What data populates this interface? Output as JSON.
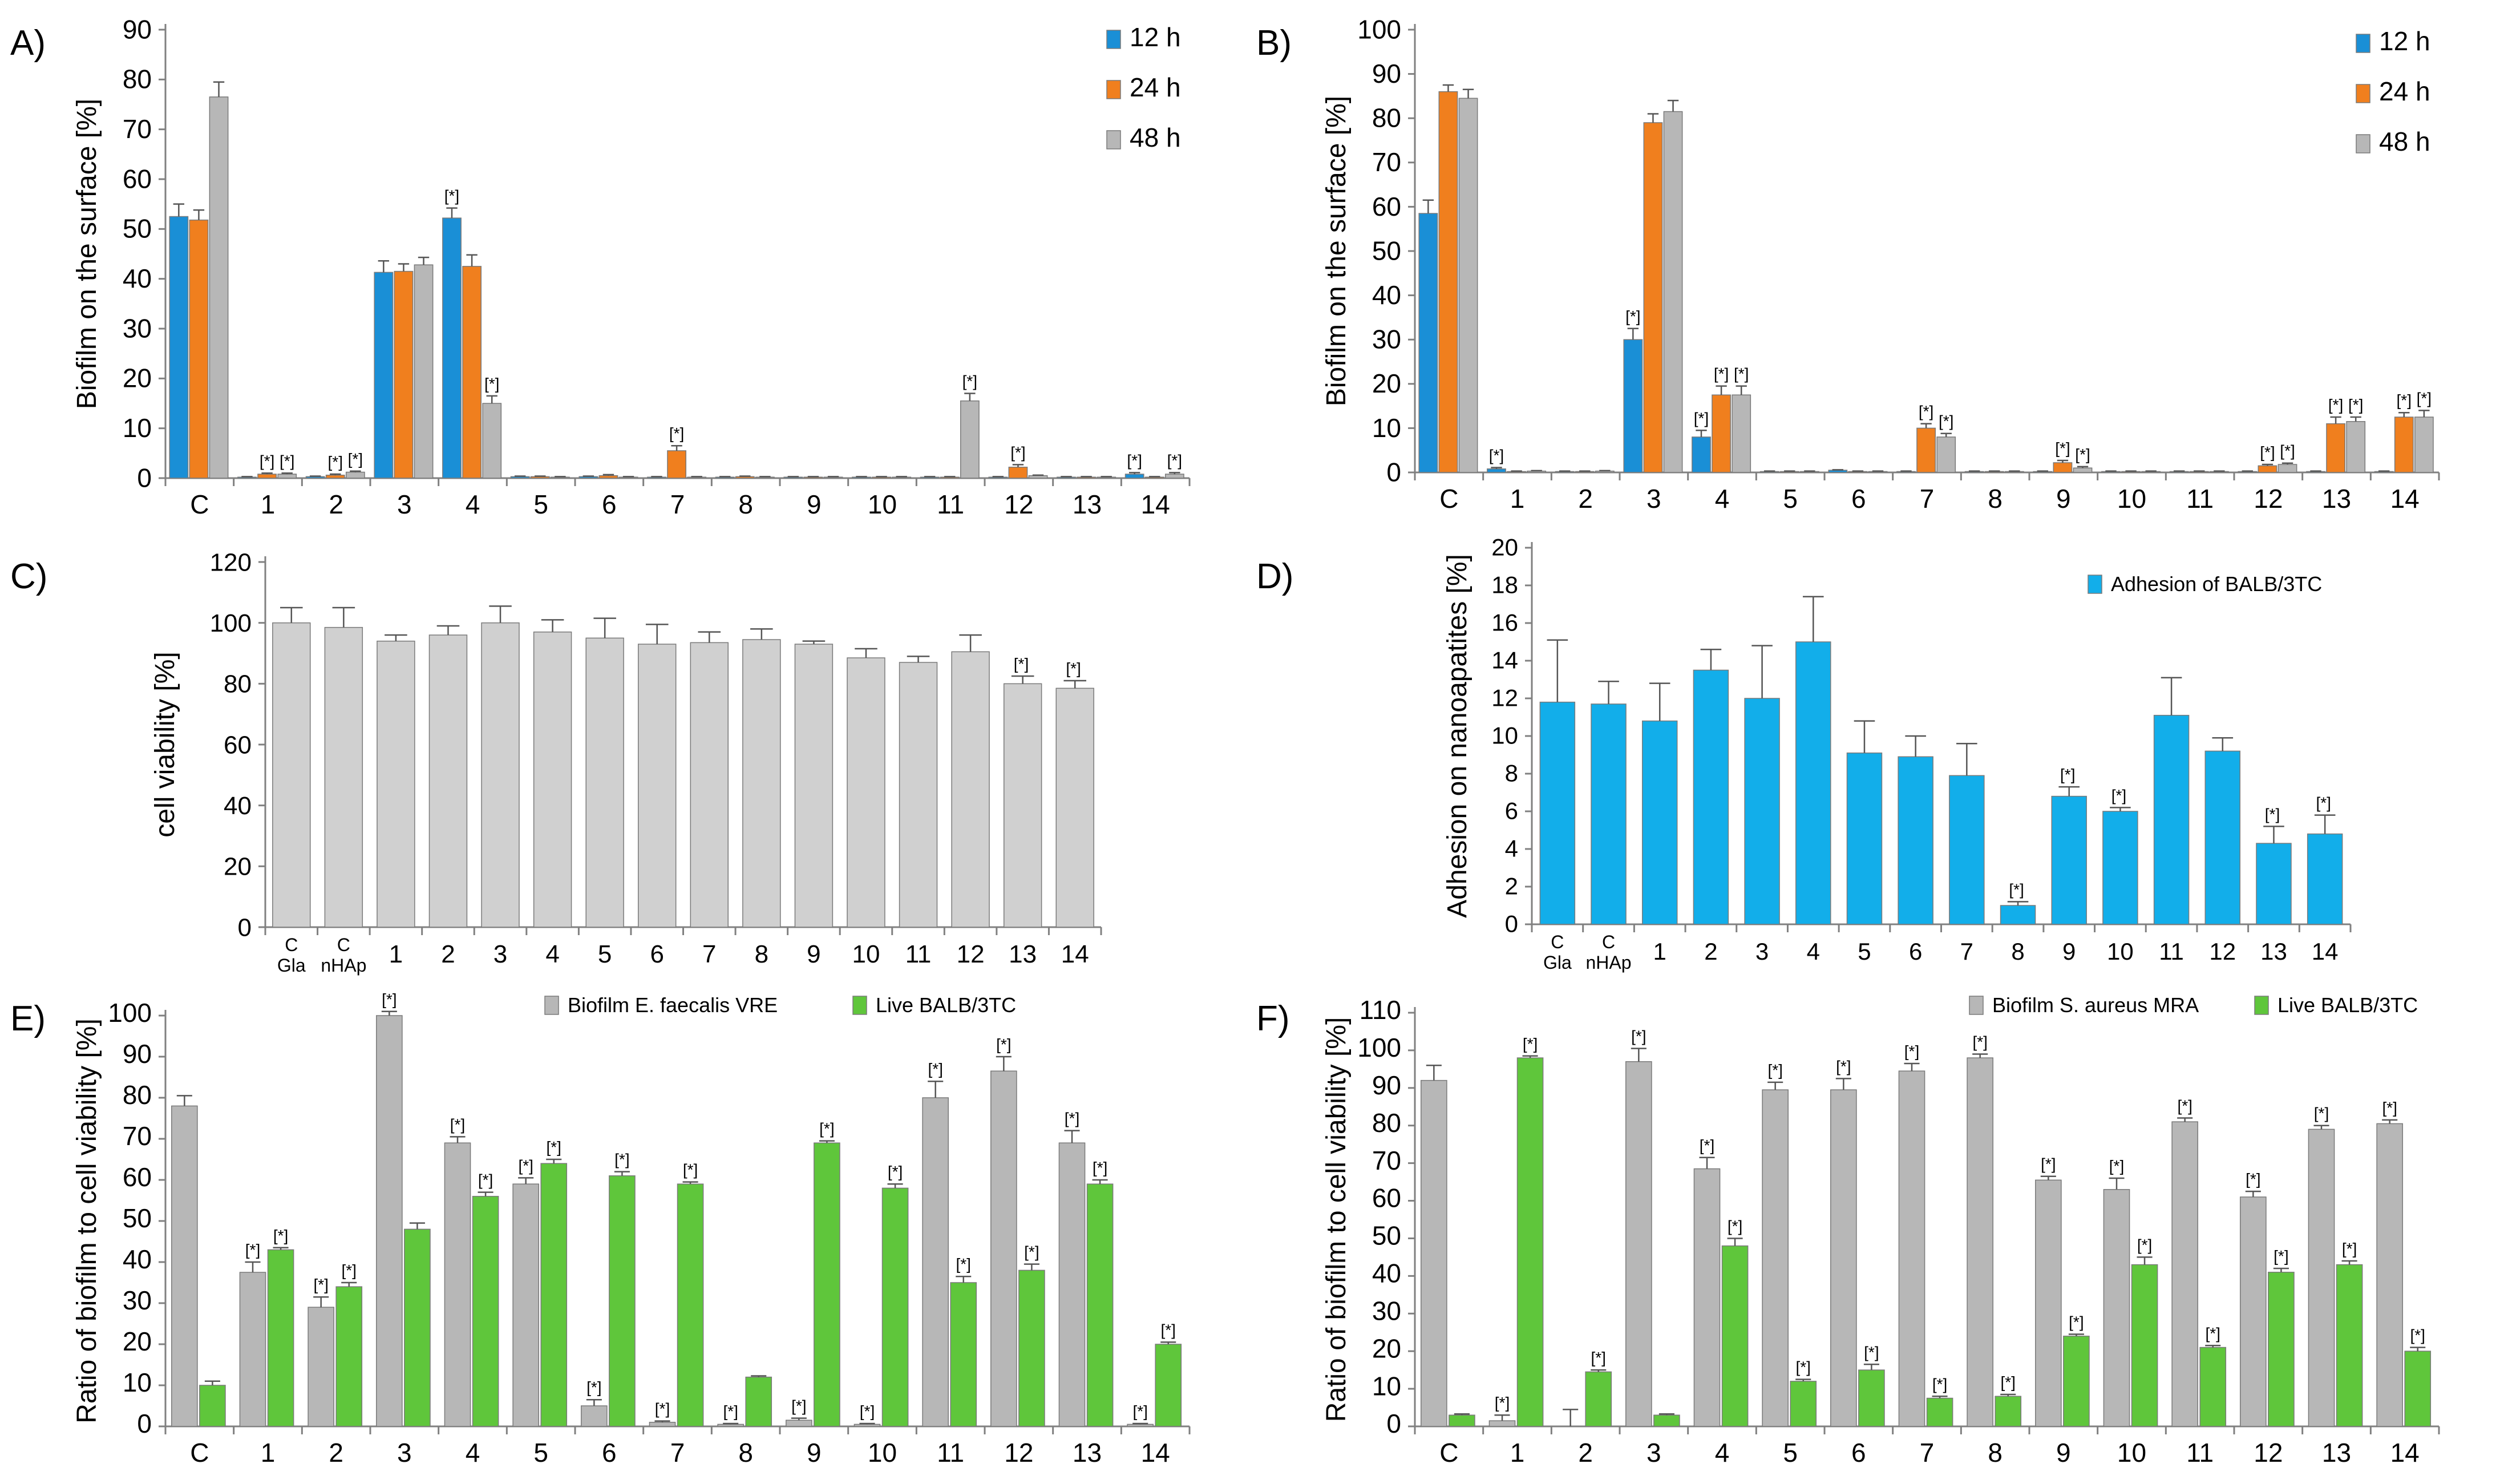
{
  "colors": {
    "blue": "#1a8fd6",
    "orange": "#f07f1e",
    "gray": "#b7b7b7",
    "light_gray": "#d0d0d0",
    "cyan": "#12aeea",
    "green": "#5fc63b"
  },
  "chart_data": [
    {
      "id": "A",
      "panel_label": "A)",
      "type": "bar",
      "ylabel": "Biofilm on the surface [%]",
      "ylim": [
        0,
        90
      ],
      "yticks": [
        0,
        10,
        20,
        30,
        40,
        50,
        60,
        70,
        80,
        90
      ],
      "categories": [
        "C",
        "1",
        "2",
        "3",
        "4",
        "5",
        "6",
        "7",
        "8",
        "9",
        "10",
        "11",
        "12",
        "13",
        "14"
      ],
      "legend_position": "top-right",
      "series": [
        {
          "name": "12 h",
          "color": "blue",
          "values": [
            52.5,
            0.2,
            0.3,
            41.3,
            52.2,
            0.3,
            0.3,
            0.2,
            0.2,
            0.2,
            0.2,
            0.2,
            0.2,
            0.2,
            0.8
          ],
          "errors": [
            2.5,
            0.1,
            0.1,
            2.3,
            2.0,
            0.1,
            0.1,
            0.1,
            0.1,
            0.1,
            0.1,
            0.1,
            0.1,
            0.1,
            0.3
          ]
        },
        {
          "name": "24 h",
          "color": "orange",
          "values": [
            51.8,
            0.8,
            0.6,
            41.5,
            42.5,
            0.3,
            0.5,
            5.5,
            0.3,
            0.2,
            0.2,
            0.2,
            2.2,
            0.2,
            0.2
          ],
          "errors": [
            2.0,
            0.2,
            0.2,
            1.5,
            2.3,
            0.1,
            0.2,
            1.0,
            0.1,
            0.1,
            0.1,
            0.1,
            0.5,
            0.1,
            0.1
          ]
        },
        {
          "name": "48 h",
          "color": "gray",
          "values": [
            76.5,
            0.8,
            1.2,
            42.8,
            15.0,
            0.2,
            0.2,
            0.2,
            0.2,
            0.2,
            0.2,
            15.5,
            0.5,
            0.2,
            0.8
          ],
          "errors": [
            3.0,
            0.2,
            0.2,
            1.5,
            1.5,
            0.1,
            0.1,
            0.1,
            0.1,
            0.1,
            0.1,
            1.5,
            0.1,
            0.1,
            0.3
          ]
        }
      ],
      "annotations": [
        {
          "cat": 1,
          "series": 1,
          "text": "[*]"
        },
        {
          "cat": 1,
          "series": 2,
          "text": "[*]"
        },
        {
          "cat": 2,
          "series": 1,
          "text": "[*]"
        },
        {
          "cat": 2,
          "series": 2,
          "text": "[*]"
        },
        {
          "cat": 4,
          "series": 0,
          "text": "[*]"
        },
        {
          "cat": 4,
          "series": 2,
          "text": "[*]"
        },
        {
          "cat": 7,
          "series": 1,
          "text": "[*]"
        },
        {
          "cat": 11,
          "series": 2,
          "text": "[*]"
        },
        {
          "cat": 12,
          "series": 1,
          "text": "[*]"
        },
        {
          "cat": 14,
          "series": 0,
          "text": "[*]"
        },
        {
          "cat": 14,
          "series": 2,
          "text": "[*]"
        }
      ]
    },
    {
      "id": "B",
      "panel_label": "B)",
      "type": "bar",
      "ylabel": "Biofilm on the surface [%]",
      "ylim": [
        0,
        100
      ],
      "yticks": [
        0,
        10,
        20,
        30,
        40,
        50,
        60,
        70,
        80,
        90,
        100
      ],
      "categories": [
        "C",
        "1",
        "2",
        "3",
        "4",
        "5",
        "6",
        "7",
        "8",
        "9",
        "10",
        "11",
        "12",
        "13",
        "14"
      ],
      "legend_position": "top-right",
      "series": [
        {
          "name": "12 h",
          "color": "blue",
          "values": [
            58.5,
            0.8,
            0.2,
            30.0,
            8.0,
            0.2,
            0.5,
            0.2,
            0.2,
            0.2,
            0.2,
            0.2,
            0.2,
            0.2,
            0.2
          ],
          "errors": [
            3.0,
            0.3,
            0.1,
            2.5,
            1.5,
            0.1,
            0.1,
            0.1,
            0.1,
            0.1,
            0.1,
            0.1,
            0.1,
            0.1,
            0.1
          ]
        },
        {
          "name": "24 h",
          "color": "orange",
          "values": [
            86.0,
            0.2,
            0.2,
            79.0,
            17.5,
            0.2,
            0.2,
            10.0,
            0.2,
            2.2,
            0.2,
            0.2,
            1.5,
            11.0,
            12.5
          ],
          "errors": [
            1.5,
            0.1,
            0.1,
            2.0,
            2.0,
            0.1,
            0.1,
            1.0,
            0.1,
            0.5,
            0.1,
            0.1,
            0.3,
            1.5,
            1.0
          ]
        },
        {
          "name": "48 h",
          "color": "gray",
          "values": [
            84.5,
            0.3,
            0.3,
            81.5,
            17.5,
            0.2,
            0.2,
            8.0,
            0.2,
            1.0,
            0.2,
            0.2,
            1.8,
            11.5,
            12.5
          ],
          "errors": [
            2.0,
            0.1,
            0.1,
            2.5,
            2.0,
            0.1,
            0.1,
            0.8,
            0.1,
            0.3,
            0.1,
            0.1,
            0.3,
            1.0,
            1.5
          ]
        }
      ],
      "annotations": [
        {
          "cat": 1,
          "series": 0,
          "text": "[*]"
        },
        {
          "cat": 3,
          "series": 0,
          "text": "[*]"
        },
        {
          "cat": 4,
          "series": 0,
          "text": "[*]"
        },
        {
          "cat": 4,
          "series": 1,
          "text": "[*]"
        },
        {
          "cat": 4,
          "series": 2,
          "text": "[*]"
        },
        {
          "cat": 7,
          "series": 1,
          "text": "[*]"
        },
        {
          "cat": 7,
          "series": 2,
          "text": "[*]"
        },
        {
          "cat": 9,
          "series": 1,
          "text": "[*]"
        },
        {
          "cat": 9,
          "series": 2,
          "text": "[*]"
        },
        {
          "cat": 12,
          "series": 1,
          "text": "[*]"
        },
        {
          "cat": 12,
          "series": 2,
          "text": "[*]"
        },
        {
          "cat": 13,
          "series": 1,
          "text": "[*]"
        },
        {
          "cat": 13,
          "series": 2,
          "text": "[*]"
        },
        {
          "cat": 14,
          "series": 1,
          "text": "[*]"
        },
        {
          "cat": 14,
          "series": 2,
          "text": "[*]"
        }
      ]
    },
    {
      "id": "C",
      "panel_label": "C)",
      "type": "bar",
      "ylabel": "cell viability [%]",
      "ylim": [
        0,
        120
      ],
      "yticks": [
        0,
        20,
        40,
        60,
        80,
        100,
        120
      ],
      "categories": [
        "C\nGla",
        "C\nnHAp",
        "1",
        "2",
        "3",
        "4",
        "5",
        "6",
        "7",
        "8",
        "9",
        "10",
        "11",
        "12",
        "13",
        "14"
      ],
      "series": [
        {
          "name": "cell viability",
          "color": "light_gray",
          "values": [
            100,
            98.5,
            94,
            96,
            100,
            97,
            95,
            93,
            93.5,
            94.5,
            93,
            88.5,
            87,
            90.5,
            80,
            78.5
          ],
          "errors": [
            5,
            6.5,
            2,
            3,
            5.5,
            4,
            6.5,
            6.5,
            3.5,
            3.5,
            1,
            3,
            2,
            5.5,
            2.5,
            2.5
          ]
        }
      ],
      "annotations": [
        {
          "cat": 14,
          "series": 0,
          "text": "[*]"
        },
        {
          "cat": 15,
          "series": 0,
          "text": "[*]"
        }
      ]
    },
    {
      "id": "D",
      "panel_label": "D)",
      "type": "bar",
      "ylabel": "Adhesion on nanoapatites [%]",
      "ylim": [
        0,
        20
      ],
      "yticks": [
        0,
        2,
        4,
        6,
        8,
        10,
        12,
        14,
        16,
        18,
        20
      ],
      "categories": [
        "C\nGla",
        "C\nnHAp",
        "1",
        "2",
        "3",
        "4",
        "5",
        "6",
        "7",
        "8",
        "9",
        "10",
        "11",
        "12",
        "13",
        "14"
      ],
      "legend_position": "top-right",
      "series": [
        {
          "name": "Adhesion of BALB/3TC",
          "color": "cyan",
          "values": [
            11.8,
            11.7,
            10.8,
            13.5,
            12.0,
            15.0,
            9.1,
            8.9,
            7.9,
            1.0,
            6.8,
            6.0,
            11.1,
            9.2,
            4.3,
            4.8
          ],
          "errors": [
            3.3,
            1.2,
            2.0,
            1.1,
            2.8,
            2.4,
            1.7,
            1.1,
            1.7,
            0.2,
            0.5,
            0.2,
            2.0,
            0.7,
            0.9,
            1.0
          ]
        }
      ],
      "annotations": [
        {
          "cat": 9,
          "series": 0,
          "text": "[*]"
        },
        {
          "cat": 10,
          "series": 0,
          "text": "[*]"
        },
        {
          "cat": 11,
          "series": 0,
          "text": "[*]"
        },
        {
          "cat": 14,
          "series": 0,
          "text": "[*]"
        },
        {
          "cat": 15,
          "series": 0,
          "text": "[*]"
        }
      ]
    },
    {
      "id": "E",
      "panel_label": "E)",
      "type": "bar",
      "ylabel": "Ratio of biofilm to cell viability [%]",
      "ylim": [
        0,
        100
      ],
      "yticks": [
        0,
        10,
        20,
        30,
        40,
        50,
        60,
        70,
        80,
        90,
        100
      ],
      "categories": [
        "C",
        "1",
        "2",
        "3",
        "4",
        "5",
        "6",
        "7",
        "8",
        "9",
        "10",
        "11",
        "12",
        "13",
        "14"
      ],
      "legend_position": "top",
      "series": [
        {
          "name": "Biofilm E. faecalis VRE",
          "color": "gray",
          "values": [
            78,
            37.5,
            29,
            100,
            69,
            59,
            5,
            1,
            0.5,
            1.5,
            0.5,
            80,
            86.5,
            69,
            0.5
          ],
          "errors": [
            2.5,
            2.5,
            2.5,
            1,
            1.5,
            1.5,
            1.5,
            0.3,
            0.2,
            0.5,
            0.2,
            4,
            3.5,
            3,
            0.2
          ]
        },
        {
          "name": "Live BALB/3TC",
          "color": "green",
          "values": [
            10,
            43,
            34,
            48,
            56,
            64,
            61,
            59,
            12,
            69,
            58,
            35,
            38,
            59,
            20
          ],
          "errors": [
            1,
            0.5,
            1,
            1.5,
            1,
            1,
            1,
            0.5,
            0.3,
            0.5,
            1,
            1.5,
            1.5,
            1,
            0.5
          ]
        }
      ],
      "annotations": [
        {
          "cat": 1,
          "series": 0,
          "text": "[*]"
        },
        {
          "cat": 1,
          "series": 1,
          "text": "[*]"
        },
        {
          "cat": 2,
          "series": 0,
          "text": "[*]"
        },
        {
          "cat": 2,
          "series": 1,
          "text": "[*]"
        },
        {
          "cat": 3,
          "series": 0,
          "text": "[*]"
        },
        {
          "cat": 4,
          "series": 0,
          "text": "[*]"
        },
        {
          "cat": 4,
          "series": 1,
          "text": "[*]"
        },
        {
          "cat": 5,
          "series": 0,
          "text": "[*]"
        },
        {
          "cat": 5,
          "series": 1,
          "text": "[*]"
        },
        {
          "cat": 6,
          "series": 0,
          "text": "[*]"
        },
        {
          "cat": 6,
          "series": 1,
          "text": "[*]"
        },
        {
          "cat": 7,
          "series": 0,
          "text": "[*]"
        },
        {
          "cat": 7,
          "series": 1,
          "text": "[*]"
        },
        {
          "cat": 8,
          "series": 0,
          "text": "[*]"
        },
        {
          "cat": 9,
          "series": 0,
          "text": "[*]"
        },
        {
          "cat": 9,
          "series": 1,
          "text": "[*]"
        },
        {
          "cat": 10,
          "series": 0,
          "text": "[*]"
        },
        {
          "cat": 10,
          "series": 1,
          "text": "[*]"
        },
        {
          "cat": 11,
          "series": 0,
          "text": "[*]"
        },
        {
          "cat": 11,
          "series": 1,
          "text": "[*]"
        },
        {
          "cat": 12,
          "series": 0,
          "text": "[*]"
        },
        {
          "cat": 12,
          "series": 1,
          "text": "[*]"
        },
        {
          "cat": 13,
          "series": 0,
          "text": "[*]"
        },
        {
          "cat": 13,
          "series": 1,
          "text": "[*]"
        },
        {
          "cat": 14,
          "series": 0,
          "text": "[*]"
        },
        {
          "cat": 14,
          "series": 1,
          "text": "[*]"
        }
      ]
    },
    {
      "id": "F",
      "panel_label": "F)",
      "type": "bar",
      "ylabel": "Ratio of biofilm to cell viability [%]",
      "ylim": [
        0,
        110
      ],
      "yticks": [
        0,
        10,
        20,
        30,
        40,
        50,
        60,
        70,
        80,
        90,
        100,
        110
      ],
      "categories": [
        "C",
        "1",
        "2",
        "3",
        "4",
        "5",
        "6",
        "7",
        "8",
        "9",
        "10",
        "11",
        "12",
        "13",
        "14"
      ],
      "legend_position": "top",
      "series": [
        {
          "name": "Biofilm S. aureus MRA",
          "color": "gray",
          "values": [
            92,
            1.5,
            0,
            97,
            68.5,
            89.5,
            89.5,
            94.5,
            98,
            65.5,
            63,
            81,
            61,
            79,
            80.5
          ],
          "errors": [
            4,
            1.5,
            4.5,
            3.5,
            3,
            2,
            3,
            2,
            1,
            1,
            3,
            1,
            1.5,
            1,
            1
          ]
        },
        {
          "name": "Live BALB/3TC",
          "color": "green",
          "values": [
            3,
            98,
            14.5,
            3,
            48,
            12,
            15,
            7.5,
            8,
            24,
            43,
            21,
            41,
            43,
            20
          ],
          "errors": [
            0.3,
            0.5,
            0.5,
            0.3,
            2,
            0.5,
            1.5,
            0.5,
            0.5,
            0.5,
            2,
            0.5,
            1,
            1,
            1
          ]
        }
      ],
      "annotations": [
        {
          "cat": 1,
          "series": 0,
          "text": "[*]"
        },
        {
          "cat": 1,
          "series": 1,
          "text": "[*]"
        },
        {
          "cat": 2,
          "series": 1,
          "text": "[*]"
        },
        {
          "cat": 3,
          "series": 0,
          "text": "[*]"
        },
        {
          "cat": 4,
          "series": 0,
          "text": "[*]"
        },
        {
          "cat": 4,
          "series": 1,
          "text": "[*]"
        },
        {
          "cat": 5,
          "series": 0,
          "text": "[*]"
        },
        {
          "cat": 5,
          "series": 1,
          "text": "[*]"
        },
        {
          "cat": 6,
          "series": 0,
          "text": "[*]"
        },
        {
          "cat": 6,
          "series": 1,
          "text": "[*]"
        },
        {
          "cat": 7,
          "series": 0,
          "text": "[*]"
        },
        {
          "cat": 7,
          "series": 1,
          "text": "[*]"
        },
        {
          "cat": 8,
          "series": 0,
          "text": "[*]"
        },
        {
          "cat": 8,
          "series": 1,
          "text": "[*]"
        },
        {
          "cat": 9,
          "series": 0,
          "text": "[*]"
        },
        {
          "cat": 9,
          "series": 1,
          "text": "[*]"
        },
        {
          "cat": 10,
          "series": 0,
          "text": "[*]"
        },
        {
          "cat": 10,
          "series": 1,
          "text": "[*]"
        },
        {
          "cat": 11,
          "series": 0,
          "text": "[*]"
        },
        {
          "cat": 11,
          "series": 1,
          "text": "[*]"
        },
        {
          "cat": 12,
          "series": 0,
          "text": "[*]"
        },
        {
          "cat": 12,
          "series": 1,
          "text": "[*]"
        },
        {
          "cat": 13,
          "series": 0,
          "text": "[*]"
        },
        {
          "cat": 13,
          "series": 1,
          "text": "[*]"
        },
        {
          "cat": 14,
          "series": 0,
          "text": "[*]"
        },
        {
          "cat": 14,
          "series": 1,
          "text": "[*]"
        }
      ]
    }
  ]
}
